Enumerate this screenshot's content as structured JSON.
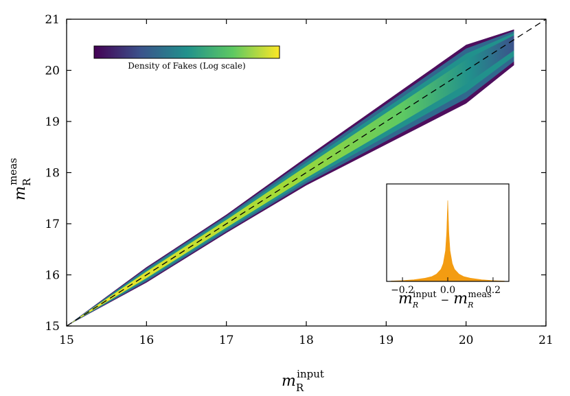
{
  "chart_data": [
    {
      "type": "heatmap",
      "title": "",
      "xlabel": {
        "base": "m",
        "sub": "R",
        "sup": "input"
      },
      "ylabel": {
        "base": "m",
        "sub": "R",
        "sup": "meas"
      },
      "xlim": [
        15,
        21
      ],
      "ylim": [
        15,
        21
      ],
      "xticks": [
        15,
        16,
        17,
        18,
        19,
        20,
        21
      ],
      "yticks": [
        15,
        16,
        17,
        18,
        19,
        20,
        21
      ],
      "reference_line": {
        "x": [
          15,
          21
        ],
        "y": [
          15,
          21
        ],
        "style": "dashed",
        "color": "#000000"
      },
      "density_ridge": [
        {
          "x": 15.0,
          "lower": 15.0,
          "upper": 15.0
        },
        {
          "x": 16.0,
          "lower": 15.85,
          "upper": 16.15
        },
        {
          "x": 17.0,
          "lower": 16.82,
          "upper": 17.18
        },
        {
          "x": 18.0,
          "lower": 17.75,
          "upper": 18.3
        },
        {
          "x": 19.0,
          "lower": 18.55,
          "upper": 19.4
        },
        {
          "x": 20.0,
          "lower": 19.35,
          "upper": 20.5
        },
        {
          "x": 20.6,
          "lower": 20.1,
          "upper": 20.8
        }
      ],
      "colorbar": {
        "label": "Density of Fakes (Log scale)",
        "colormap": "viridis",
        "colors": [
          "#440154",
          "#3b528b",
          "#21918c",
          "#5ec962",
          "#fde725"
        ]
      }
    },
    {
      "type": "area",
      "role": "inset histogram",
      "xlabel": {
        "parts": [
          {
            "base": "m",
            "sub": "R",
            "sup": "input"
          },
          {
            "op": "−"
          },
          {
            "base": "m",
            "sub": "R",
            "sup": "meas"
          }
        ]
      },
      "xlim": [
        -0.27,
        0.27
      ],
      "xticks": [
        -0.2,
        0.0,
        0.2
      ],
      "xticklabels": [
        "−0.2",
        "0.0",
        "0.2"
      ],
      "color": "#f39c12",
      "x": [
        -0.25,
        -0.2,
        -0.15,
        -0.1,
        -0.07,
        -0.05,
        -0.03,
        -0.02,
        -0.01,
        -0.005,
        0.0,
        0.005,
        0.01,
        0.02,
        0.03,
        0.05,
        0.07,
        0.1,
        0.15,
        0.2,
        0.25
      ],
      "y": [
        0.005,
        0.01,
        0.02,
        0.04,
        0.06,
        0.09,
        0.15,
        0.22,
        0.38,
        0.6,
        1.0,
        0.6,
        0.38,
        0.22,
        0.15,
        0.09,
        0.06,
        0.04,
        0.02,
        0.01,
        0.005
      ]
    }
  ]
}
